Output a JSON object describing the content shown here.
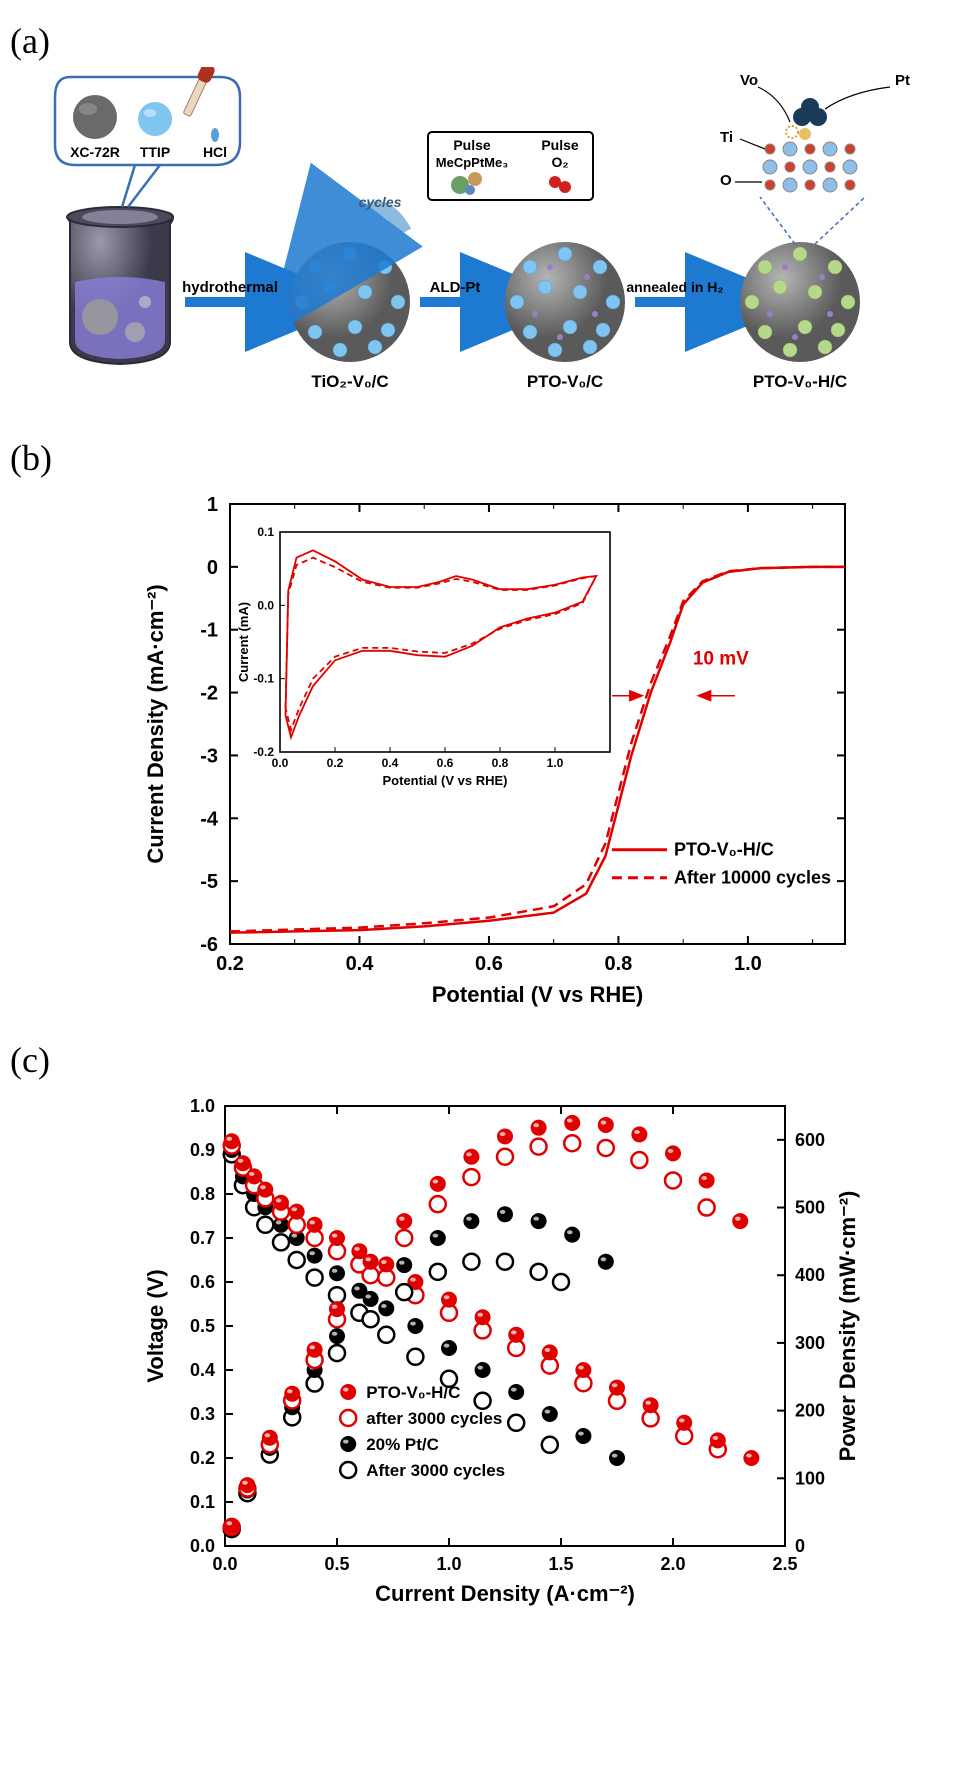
{
  "panel_a": {
    "label": "(a)",
    "callout_items": [
      {
        "name": "XC-72R",
        "color": "#6a6a6a"
      },
      {
        "name": "TTIP",
        "color": "#6fb8e8"
      },
      {
        "name": "HCl",
        "color": "#000000"
      }
    ],
    "pulse_box": {
      "left_title": "Pulse",
      "left_sub": "MeCpPtMe₃",
      "right_title": "Pulse",
      "right_sub": "O₂"
    },
    "steps": [
      {
        "arrow_label": "hydrothermal",
        "product": "TiO₂-V₀/C"
      },
      {
        "arrow_label": "ALD-Pt",
        "product": "PTO-V₀/C"
      },
      {
        "arrow_label": "annealed in H₂",
        "product": "PTO-V₀-H/C"
      }
    ],
    "atom_labels": [
      "Vo",
      "Pt",
      "Ti",
      "O"
    ],
    "cycles_label": "cycles",
    "colors": {
      "arrow": "#1e7ad1",
      "sphere_body": "#7a7a7a",
      "sphere_highlight": "#bdbdbd",
      "dot_blue": "#7fc5f0",
      "dot_green": "#b5d88a",
      "dot_purple": "#9a7fc5",
      "beaker_body": "#5a5a6a",
      "beaker_liquid": "#8a7fd9"
    }
  },
  "panel_b": {
    "label": "(b)",
    "chart": {
      "type": "line",
      "title": "",
      "xlabel": "Potential (V vs RHE)",
      "ylabel": "Current Density (mA·cm⁻²)",
      "xlim": [
        0.2,
        1.15
      ],
      "ylim": [
        -6,
        1
      ],
      "xticks": [
        0.2,
        0.4,
        0.6,
        0.8,
        1.0
      ],
      "yticks": [
        -6,
        -5,
        -4,
        -3,
        -2,
        -1,
        0,
        1
      ],
      "label_fontsize": 22,
      "tick_fontsize": 20,
      "border_color": "#000000",
      "line_color": "#e00000",
      "line_width": 2.5,
      "annotation": "10 mV",
      "annotation_color": "#e00000",
      "legend": [
        {
          "label": "PTO-V₀-H/C",
          "style": "solid"
        },
        {
          "label": "After 10000 cycles",
          "style": "dashed"
        }
      ],
      "series_solid": [
        [
          0.2,
          -5.82
        ],
        [
          0.3,
          -5.8
        ],
        [
          0.4,
          -5.78
        ],
        [
          0.5,
          -5.72
        ],
        [
          0.6,
          -5.63
        ],
        [
          0.7,
          -5.5
        ],
        [
          0.75,
          -5.2
        ],
        [
          0.78,
          -4.6
        ],
        [
          0.8,
          -3.8
        ],
        [
          0.82,
          -3.0
        ],
        [
          0.85,
          -2.0
        ],
        [
          0.88,
          -1.2
        ],
        [
          0.9,
          -0.6
        ],
        [
          0.93,
          -0.25
        ],
        [
          0.97,
          -0.08
        ],
        [
          1.02,
          -0.02
        ],
        [
          1.1,
          0
        ],
        [
          1.15,
          0
        ]
      ],
      "series_dashed": [
        [
          0.2,
          -5.8
        ],
        [
          0.3,
          -5.77
        ],
        [
          0.4,
          -5.74
        ],
        [
          0.5,
          -5.67
        ],
        [
          0.6,
          -5.58
        ],
        [
          0.7,
          -5.4
        ],
        [
          0.75,
          -5.05
        ],
        [
          0.78,
          -4.4
        ],
        [
          0.8,
          -3.6
        ],
        [
          0.82,
          -2.8
        ],
        [
          0.85,
          -1.85
        ],
        [
          0.88,
          -1.1
        ],
        [
          0.9,
          -0.55
        ],
        [
          0.93,
          -0.23
        ],
        [
          0.97,
          -0.07
        ],
        [
          1.02,
          -0.02
        ],
        [
          1.1,
          0
        ],
        [
          1.15,
          0
        ]
      ]
    },
    "inset": {
      "xlabel": "Potential (V vs RHE)",
      "ylabel": "Current (mA)",
      "xlim": [
        0.0,
        1.2
      ],
      "ylim": [
        -0.2,
        0.1
      ],
      "xticks": [
        0.0,
        0.2,
        0.4,
        0.6,
        0.8,
        1.0
      ],
      "yticks": [
        -0.2,
        -0.1,
        0.0,
        0.1
      ],
      "line_color": "#e00000",
      "cv_upper": [
        [
          0.02,
          -0.15
        ],
        [
          0.03,
          0.02
        ],
        [
          0.06,
          0.065
        ],
        [
          0.12,
          0.075
        ],
        [
          0.2,
          0.06
        ],
        [
          0.3,
          0.035
        ],
        [
          0.4,
          0.025
        ],
        [
          0.5,
          0.025
        ],
        [
          0.58,
          0.032
        ],
        [
          0.64,
          0.04
        ],
        [
          0.7,
          0.035
        ],
        [
          0.8,
          0.022
        ],
        [
          0.9,
          0.022
        ],
        [
          1.0,
          0.028
        ],
        [
          1.1,
          0.038
        ],
        [
          1.15,
          0.04
        ]
      ],
      "cv_lower": [
        [
          1.15,
          0.04
        ],
        [
          1.1,
          0.005
        ],
        [
          1.0,
          -0.01
        ],
        [
          0.9,
          -0.018
        ],
        [
          0.8,
          -0.03
        ],
        [
          0.7,
          -0.055
        ],
        [
          0.6,
          -0.07
        ],
        [
          0.5,
          -0.068
        ],
        [
          0.4,
          -0.062
        ],
        [
          0.3,
          -0.062
        ],
        [
          0.2,
          -0.075
        ],
        [
          0.12,
          -0.11
        ],
        [
          0.07,
          -0.15
        ],
        [
          0.04,
          -0.18
        ],
        [
          0.02,
          -0.15
        ]
      ],
      "cv_upper_dash": [
        [
          0.02,
          -0.14
        ],
        [
          0.03,
          0.015
        ],
        [
          0.06,
          0.055
        ],
        [
          0.12,
          0.065
        ],
        [
          0.2,
          0.052
        ],
        [
          0.3,
          0.032
        ],
        [
          0.4,
          0.024
        ],
        [
          0.5,
          0.024
        ],
        [
          0.58,
          0.03
        ],
        [
          0.64,
          0.036
        ],
        [
          0.7,
          0.032
        ],
        [
          0.8,
          0.021
        ],
        [
          0.9,
          0.021
        ],
        [
          1.0,
          0.027
        ],
        [
          1.1,
          0.037
        ],
        [
          1.15,
          0.04
        ]
      ],
      "cv_lower_dash": [
        [
          1.15,
          0.04
        ],
        [
          1.1,
          0.003
        ],
        [
          1.0,
          -0.012
        ],
        [
          0.9,
          -0.02
        ],
        [
          0.8,
          -0.032
        ],
        [
          0.7,
          -0.052
        ],
        [
          0.6,
          -0.065
        ],
        [
          0.5,
          -0.063
        ],
        [
          0.4,
          -0.058
        ],
        [
          0.3,
          -0.058
        ],
        [
          0.2,
          -0.07
        ],
        [
          0.12,
          -0.1
        ],
        [
          0.07,
          -0.14
        ],
        [
          0.04,
          -0.17
        ],
        [
          0.02,
          -0.14
        ]
      ]
    }
  },
  "panel_c": {
    "label": "(c)",
    "chart": {
      "type": "scatter",
      "xlabel": "Current Density (A·cm⁻²)",
      "ylabel": "Voltage (V)",
      "y2label": "Power Density (mW·cm⁻²)",
      "xlim": [
        0,
        2.5
      ],
      "ylim": [
        0,
        1.0
      ],
      "y2lim": [
        0,
        650
      ],
      "xticks": [
        0.0,
        0.5,
        1.0,
        1.5,
        2.0,
        2.5
      ],
      "yticks": [
        0.0,
        0.1,
        0.2,
        0.3,
        0.4,
        0.5,
        0.6,
        0.7,
        0.8,
        0.9,
        1.0
      ],
      "y2ticks": [
        0,
        100,
        200,
        300,
        400,
        500,
        600
      ],
      "label_fontsize": 22,
      "tick_fontsize": 18,
      "marker_r": 8,
      "colors": {
        "red": "#e00000",
        "black": "#000000"
      },
      "legend": [
        {
          "label": "PTO-V₀-H/C",
          "marker": "filled",
          "color": "#e00000"
        },
        {
          "label": "after 3000 cycles",
          "marker": "open",
          "color": "#e00000"
        },
        {
          "label": "20% Pt/C",
          "marker": "filled",
          "color": "#000000"
        },
        {
          "label": "After 3000 cycles",
          "marker": "open",
          "color": "#000000"
        }
      ],
      "v_red_filled": [
        [
          0.03,
          0.92
        ],
        [
          0.08,
          0.87
        ],
        [
          0.13,
          0.84
        ],
        [
          0.18,
          0.81
        ],
        [
          0.25,
          0.78
        ],
        [
          0.32,
          0.76
        ],
        [
          0.4,
          0.73
        ],
        [
          0.5,
          0.7
        ],
        [
          0.6,
          0.67
        ],
        [
          0.72,
          0.64
        ],
        [
          0.85,
          0.6
        ],
        [
          1.0,
          0.56
        ],
        [
          1.15,
          0.52
        ],
        [
          1.3,
          0.48
        ],
        [
          1.45,
          0.44
        ],
        [
          1.6,
          0.4
        ],
        [
          1.75,
          0.36
        ],
        [
          1.9,
          0.32
        ],
        [
          2.05,
          0.28
        ],
        [
          2.2,
          0.24
        ],
        [
          2.35,
          0.2
        ]
      ],
      "v_red_open": [
        [
          0.03,
          0.91
        ],
        [
          0.08,
          0.86
        ],
        [
          0.13,
          0.82
        ],
        [
          0.18,
          0.79
        ],
        [
          0.25,
          0.76
        ],
        [
          0.32,
          0.73
        ],
        [
          0.4,
          0.7
        ],
        [
          0.5,
          0.67
        ],
        [
          0.6,
          0.64
        ],
        [
          0.72,
          0.61
        ],
        [
          0.85,
          0.57
        ],
        [
          1.0,
          0.53
        ],
        [
          1.15,
          0.49
        ],
        [
          1.3,
          0.45
        ],
        [
          1.45,
          0.41
        ],
        [
          1.6,
          0.37
        ],
        [
          1.75,
          0.33
        ],
        [
          1.9,
          0.29
        ],
        [
          2.05,
          0.25
        ],
        [
          2.2,
          0.22
        ]
      ],
      "v_blk_filled": [
        [
          0.03,
          0.9
        ],
        [
          0.08,
          0.84
        ],
        [
          0.13,
          0.8
        ],
        [
          0.18,
          0.77
        ],
        [
          0.25,
          0.73
        ],
        [
          0.32,
          0.7
        ],
        [
          0.4,
          0.66
        ],
        [
          0.5,
          0.62
        ],
        [
          0.6,
          0.58
        ],
        [
          0.72,
          0.54
        ],
        [
          0.85,
          0.5
        ],
        [
          1.0,
          0.45
        ],
        [
          1.15,
          0.4
        ],
        [
          1.3,
          0.35
        ],
        [
          1.45,
          0.3
        ],
        [
          1.6,
          0.25
        ],
        [
          1.75,
          0.2
        ]
      ],
      "v_blk_open": [
        [
          0.03,
          0.89
        ],
        [
          0.08,
          0.82
        ],
        [
          0.13,
          0.77
        ],
        [
          0.18,
          0.73
        ],
        [
          0.25,
          0.69
        ],
        [
          0.32,
          0.65
        ],
        [
          0.4,
          0.61
        ],
        [
          0.5,
          0.57
        ],
        [
          0.6,
          0.53
        ],
        [
          0.72,
          0.48
        ],
        [
          0.85,
          0.43
        ],
        [
          1.0,
          0.38
        ],
        [
          1.15,
          0.33
        ],
        [
          1.3,
          0.28
        ],
        [
          1.45,
          0.23
        ]
      ],
      "p_red_filled": [
        [
          0.03,
          30
        ],
        [
          0.1,
          90
        ],
        [
          0.2,
          160
        ],
        [
          0.3,
          225
        ],
        [
          0.4,
          290
        ],
        [
          0.5,
          350
        ],
        [
          0.65,
          420
        ],
        [
          0.8,
          480
        ],
        [
          0.95,
          535
        ],
        [
          1.1,
          575
        ],
        [
          1.25,
          605
        ],
        [
          1.4,
          618
        ],
        [
          1.55,
          625
        ],
        [
          1.7,
          622
        ],
        [
          1.85,
          608
        ],
        [
          2.0,
          580
        ],
        [
          2.15,
          540
        ],
        [
          2.3,
          480
        ]
      ],
      "p_red_open": [
        [
          0.03,
          28
        ],
        [
          0.1,
          85
        ],
        [
          0.2,
          150
        ],
        [
          0.3,
          215
        ],
        [
          0.4,
          275
        ],
        [
          0.5,
          335
        ],
        [
          0.65,
          400
        ],
        [
          0.8,
          455
        ],
        [
          0.95,
          505
        ],
        [
          1.1,
          545
        ],
        [
          1.25,
          575
        ],
        [
          1.4,
          590
        ],
        [
          1.55,
          595
        ],
        [
          1.7,
          588
        ],
        [
          1.85,
          570
        ],
        [
          2.0,
          540
        ],
        [
          2.15,
          500
        ]
      ],
      "p_blk_filled": [
        [
          0.03,
          27
        ],
        [
          0.1,
          82
        ],
        [
          0.2,
          145
        ],
        [
          0.3,
          205
        ],
        [
          0.4,
          260
        ],
        [
          0.5,
          310
        ],
        [
          0.65,
          365
        ],
        [
          0.8,
          415
        ],
        [
          0.95,
          455
        ],
        [
          1.1,
          480
        ],
        [
          1.25,
          490
        ],
        [
          1.4,
          480
        ],
        [
          1.55,
          460
        ],
        [
          1.7,
          420
        ]
      ],
      "p_blk_open": [
        [
          0.03,
          25
        ],
        [
          0.1,
          78
        ],
        [
          0.2,
          135
        ],
        [
          0.3,
          190
        ],
        [
          0.4,
          240
        ],
        [
          0.5,
          285
        ],
        [
          0.65,
          335
        ],
        [
          0.8,
          375
        ],
        [
          0.95,
          405
        ],
        [
          1.1,
          420
        ],
        [
          1.25,
          420
        ],
        [
          1.4,
          405
        ],
        [
          1.5,
          390
        ]
      ]
    }
  }
}
